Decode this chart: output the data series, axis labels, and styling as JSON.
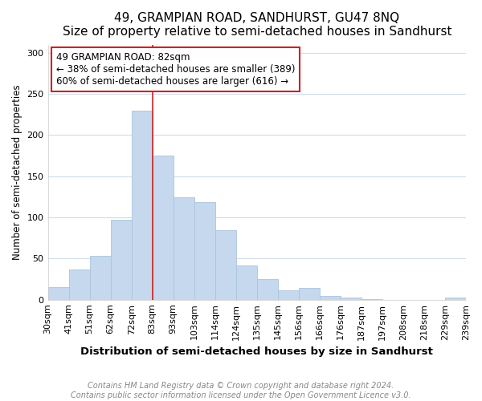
{
  "title": "49, GRAMPIAN ROAD, SANDHURST, GU47 8NQ",
  "subtitle": "Size of property relative to semi-detached houses in Sandhurst",
  "xlabel": "Distribution of semi-detached houses by size in Sandhurst",
  "ylabel": "Number of semi-detached properties",
  "categories": [
    "30sqm",
    "41sqm",
    "51sqm",
    "62sqm",
    "72sqm",
    "83sqm",
    "93sqm",
    "103sqm",
    "114sqm",
    "124sqm",
    "135sqm",
    "145sqm",
    "156sqm",
    "166sqm",
    "176sqm",
    "187sqm",
    "197sqm",
    "208sqm",
    "218sqm",
    "229sqm",
    "239sqm"
  ],
  "values": [
    15,
    37,
    53,
    97,
    230,
    175,
    124,
    119,
    84,
    42,
    25,
    11,
    14,
    5,
    3,
    1,
    0,
    0,
    0,
    3
  ],
  "bar_color": "#c5d8ed",
  "bar_edge_color": "#aac4de",
  "vline_color": "#cc2222",
  "vline_x_index": 4,
  "annotation_text": "49 GRAMPIAN ROAD: 82sqm\n← 38% of semi-detached houses are smaller (389)\n60% of semi-detached houses are larger (616) →",
  "annotation_box_facecolor": "white",
  "annotation_box_edgecolor": "#cc2222",
  "ylim": [
    0,
    310
  ],
  "yticks": [
    0,
    50,
    100,
    150,
    200,
    250,
    300
  ],
  "bg_color": "#ffffff",
  "grid_color": "#d0dce8",
  "title_fontsize": 11,
  "subtitle_fontsize": 9.5,
  "xlabel_fontsize": 9.5,
  "ylabel_fontsize": 8.5,
  "tick_fontsize": 8,
  "footer_fontsize": 7,
  "footer": "Contains HM Land Registry data © Crown copyright and database right 2024.\nContains public sector information licensed under the Open Government Licence v3.0."
}
